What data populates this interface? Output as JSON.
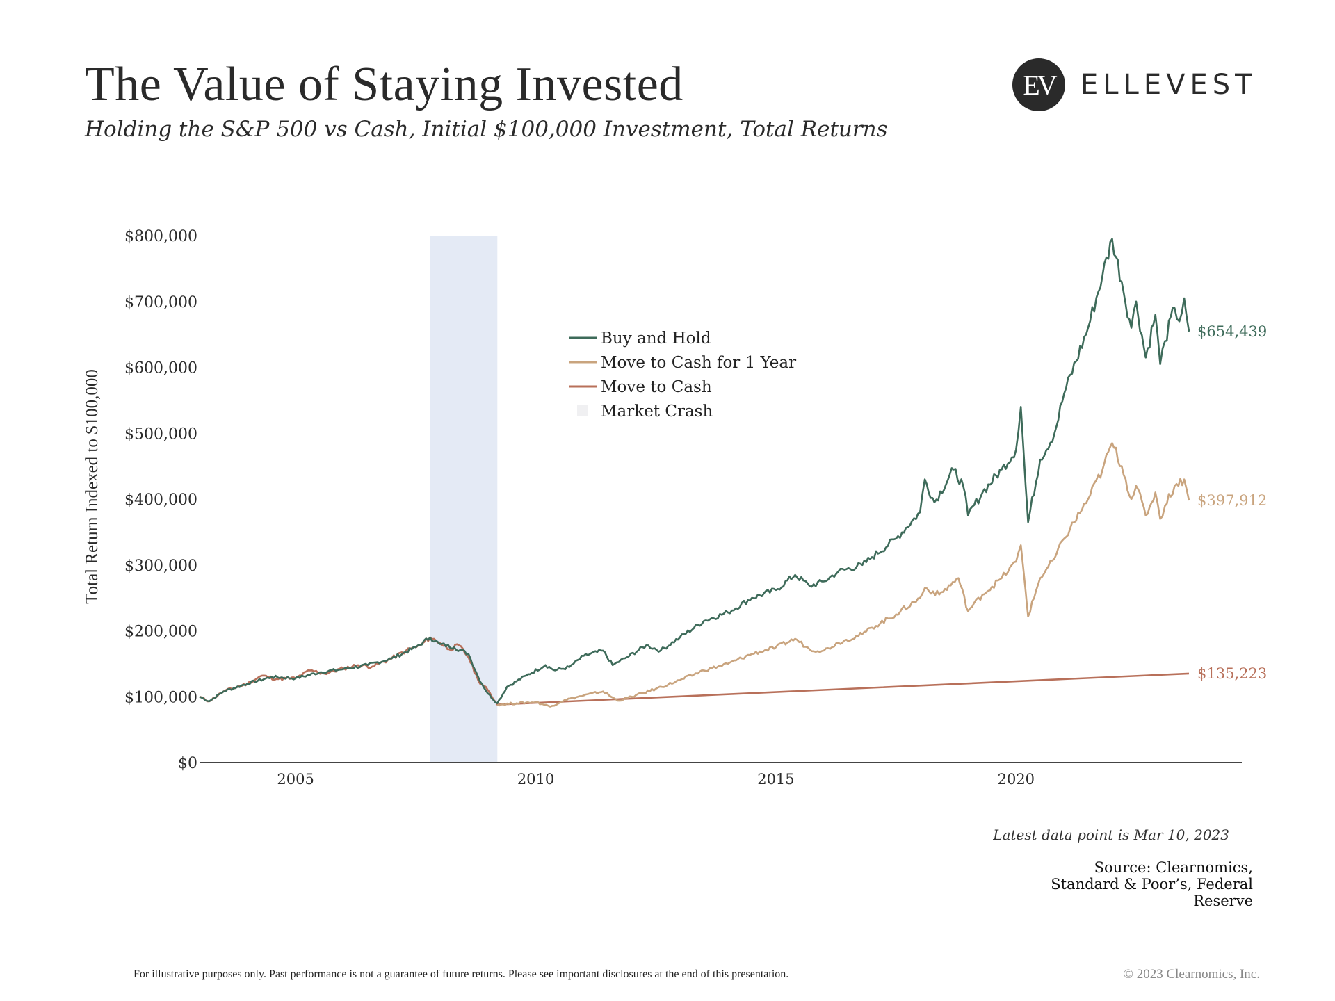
{
  "header": {
    "title": "The Value of Staying Invested",
    "subtitle": "Holding the S&P 500 vs Cash, Initial $100,000 Investment, Total Returns"
  },
  "logo": {
    "mark": "EV",
    "name": "ELLEVEST"
  },
  "footer": {
    "latest": "Latest data point is Mar 10, 2023",
    "source": "Source: Clearnomics, Standard & Poor’s, Federal Reserve",
    "disclaimer": "For illustrative purposes only. Past performance is not a guarantee of future returns. Please see important disclosures at the end of this presentation.",
    "copyright": "© 2023 Clearnomics, Inc."
  },
  "chart_data": {
    "type": "line",
    "title": "The Value of Staying Invested",
    "subtitle": "Holding the S&P 500 vs Cash, Initial $100,000 Investment, Total Returns",
    "xlabel": "",
    "ylabel": "Total Return Indexed to $100,000",
    "xlim": [
      2003.0,
      2024.7
    ],
    "ylim": [
      0,
      800000
    ],
    "x_ticks": [
      2005,
      2010,
      2015,
      2020
    ],
    "x_tick_labels": [
      "2005",
      "2010",
      "2015",
      "2020"
    ],
    "y_ticks": [
      0,
      100000,
      200000,
      300000,
      400000,
      500000,
      600000,
      700000,
      800000
    ],
    "y_tick_labels": [
      "$0",
      "$100,000",
      "$200,000",
      "$300,000",
      "$400,000",
      "$500,000",
      "$600,000",
      "$700,000",
      "$800,000"
    ],
    "grid": false,
    "legend_position": "center-top",
    "shaded_regions": [
      {
        "name": "Market Crash",
        "x_start": 2007.8,
        "x_end": 2009.2,
        "color": "#e4eaf5"
      }
    ],
    "series": [
      {
        "name": "Buy and Hold",
        "color": "#3e6b5a",
        "end_label": "$654,439",
        "points": [
          [
            2003.0,
            100000
          ],
          [
            2003.2,
            93000
          ],
          [
            2003.5,
            108000
          ],
          [
            2004.0,
            120000
          ],
          [
            2004.5,
            130000
          ],
          [
            2005.0,
            128000
          ],
          [
            2005.5,
            137000
          ],
          [
            2006.0,
            142000
          ],
          [
            2006.5,
            148000
          ],
          [
            2007.0,
            158000
          ],
          [
            2007.5,
            175000
          ],
          [
            2007.8,
            190000
          ],
          [
            2008.0,
            180000
          ],
          [
            2008.3,
            175000
          ],
          [
            2008.6,
            165000
          ],
          [
            2008.8,
            130000
          ],
          [
            2009.0,
            105000
          ],
          [
            2009.2,
            90000
          ],
          [
            2009.4,
            115000
          ],
          [
            2009.8,
            132000
          ],
          [
            2010.2,
            148000
          ],
          [
            2010.4,
            140000
          ],
          [
            2010.7,
            145000
          ],
          [
            2011.0,
            162000
          ],
          [
            2011.4,
            170000
          ],
          [
            2011.6,
            148000
          ],
          [
            2011.9,
            160000
          ],
          [
            2012.3,
            178000
          ],
          [
            2012.6,
            170000
          ],
          [
            2013.0,
            190000
          ],
          [
            2013.5,
            215000
          ],
          [
            2014.0,
            228000
          ],
          [
            2014.5,
            250000
          ],
          [
            2015.0,
            262000
          ],
          [
            2015.4,
            285000
          ],
          [
            2015.7,
            268000
          ],
          [
            2016.0,
            275000
          ],
          [
            2016.3,
            290000
          ],
          [
            2016.8,
            300000
          ],
          [
            2017.0,
            312000
          ],
          [
            2017.5,
            340000
          ],
          [
            2018.0,
            380000
          ],
          [
            2018.1,
            430000
          ],
          [
            2018.3,
            395000
          ],
          [
            2018.7,
            445000
          ],
          [
            2018.9,
            420000
          ],
          [
            2019.0,
            375000
          ],
          [
            2019.3,
            410000
          ],
          [
            2019.7,
            445000
          ],
          [
            2020.0,
            475000
          ],
          [
            2020.1,
            540000
          ],
          [
            2020.2,
            420000
          ],
          [
            2020.25,
            365000
          ],
          [
            2020.5,
            460000
          ],
          [
            2020.8,
            500000
          ],
          [
            2021.0,
            560000
          ],
          [
            2021.5,
            660000
          ],
          [
            2021.8,
            740000
          ],
          [
            2022.0,
            795000
          ],
          [
            2022.2,
            730000
          ],
          [
            2022.4,
            660000
          ],
          [
            2022.5,
            700000
          ],
          [
            2022.7,
            615000
          ],
          [
            2022.9,
            680000
          ],
          [
            2023.0,
            605000
          ],
          [
            2023.1,
            640000
          ],
          [
            2023.3,
            690000
          ],
          [
            2023.4,
            670000
          ],
          [
            2023.5,
            705000
          ],
          [
            2023.6,
            654439
          ]
        ]
      },
      {
        "name": "Move to Cash for 1 Year",
        "color": "#c9a47e",
        "end_label": "$397,912",
        "points": [
          [
            2009.2,
            88000
          ],
          [
            2009.6,
            90000
          ],
          [
            2010.0,
            92000
          ],
          [
            2010.3,
            85000
          ],
          [
            2010.6,
            95000
          ],
          [
            2011.0,
            102000
          ],
          [
            2011.4,
            108000
          ],
          [
            2011.7,
            94000
          ],
          [
            2012.0,
            100000
          ],
          [
            2012.5,
            112000
          ],
          [
            2013.0,
            125000
          ],
          [
            2013.5,
            140000
          ],
          [
            2014.0,
            150000
          ],
          [
            2014.5,
            165000
          ],
          [
            2015.0,
            175000
          ],
          [
            2015.4,
            188000
          ],
          [
            2015.7,
            172000
          ],
          [
            2016.0,
            170000
          ],
          [
            2016.3,
            182000
          ],
          [
            2016.8,
            195000
          ],
          [
            2017.0,
            205000
          ],
          [
            2017.5,
            225000
          ],
          [
            2018.0,
            250000
          ],
          [
            2018.1,
            265000
          ],
          [
            2018.4,
            255000
          ],
          [
            2018.8,
            280000
          ],
          [
            2019.0,
            230000
          ],
          [
            2019.3,
            255000
          ],
          [
            2019.7,
            280000
          ],
          [
            2020.0,
            305000
          ],
          [
            2020.1,
            330000
          ],
          [
            2020.2,
            260000
          ],
          [
            2020.25,
            222000
          ],
          [
            2020.5,
            280000
          ],
          [
            2020.8,
            310000
          ],
          [
            2021.0,
            340000
          ],
          [
            2021.5,
            400000
          ],
          [
            2021.8,
            445000
          ],
          [
            2022.0,
            485000
          ],
          [
            2022.2,
            450000
          ],
          [
            2022.4,
            400000
          ],
          [
            2022.5,
            420000
          ],
          [
            2022.7,
            375000
          ],
          [
            2022.9,
            410000
          ],
          [
            2023.0,
            370000
          ],
          [
            2023.1,
            390000
          ],
          [
            2023.3,
            420000
          ],
          [
            2023.5,
            430000
          ],
          [
            2023.6,
            397912
          ]
        ]
      },
      {
        "name": "Move to Cash",
        "color": "#b8705a",
        "end_label": "$135,223",
        "points": [
          [
            2003.0,
            100000
          ],
          [
            2003.2,
            93000
          ],
          [
            2003.5,
            108000
          ],
          [
            2004.0,
            120000
          ],
          [
            2004.3,
            132000
          ],
          [
            2004.6,
            127000
          ],
          [
            2005.0,
            128000
          ],
          [
            2005.3,
            140000
          ],
          [
            2005.6,
            135000
          ],
          [
            2006.0,
            143000
          ],
          [
            2006.3,
            148000
          ],
          [
            2006.6,
            146000
          ],
          [
            2007.0,
            158000
          ],
          [
            2007.3,
            170000
          ],
          [
            2007.6,
            178000
          ],
          [
            2007.8,
            190000
          ],
          [
            2008.0,
            182000
          ],
          [
            2008.2,
            172000
          ],
          [
            2008.4,
            178000
          ],
          [
            2008.6,
            160000
          ],
          [
            2008.8,
            125000
          ],
          [
            2009.0,
            110000
          ],
          [
            2009.2,
            88000
          ],
          [
            2012.0,
            100000
          ],
          [
            2015.0,
            110000
          ],
          [
            2018.0,
            118000
          ],
          [
            2020.0,
            125000
          ],
          [
            2022.0,
            128000
          ],
          [
            2023.6,
            135223
          ]
        ]
      }
    ]
  }
}
